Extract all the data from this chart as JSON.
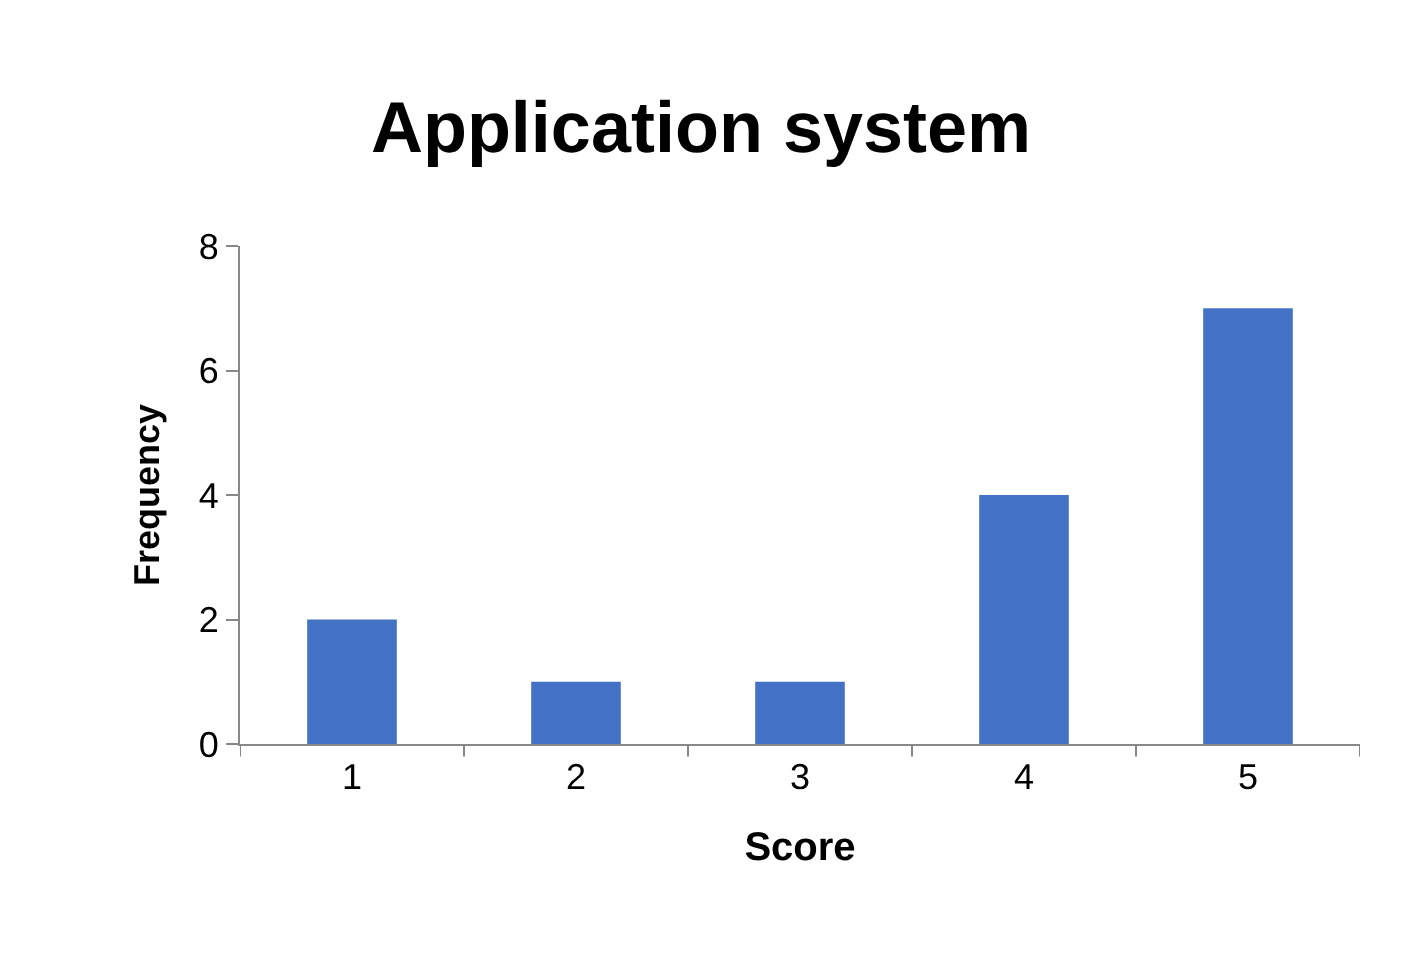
{
  "chart_data": {
    "type": "bar",
    "title": "Application system",
    "xlabel": "Score",
    "ylabel": "Frequency",
    "categories": [
      "1",
      "2",
      "3",
      "4",
      "5"
    ],
    "values": [
      2,
      1,
      1,
      4,
      7
    ],
    "color": "#4472c4",
    "ylim": [
      0,
      8
    ],
    "yticks": [
      0,
      2,
      4,
      6,
      8
    ],
    "grid": false,
    "legend": false
  }
}
